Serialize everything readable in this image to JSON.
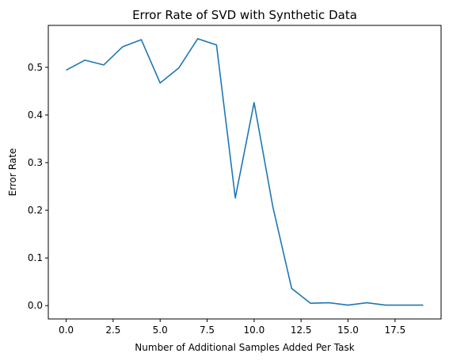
{
  "chart_data": {
    "type": "line",
    "title": "Error Rate of SVD with Synthetic Data",
    "xlabel": "Number of Additional Samples Added Per Task",
    "ylabel": "Error Rate",
    "xlim": [
      -0.95,
      19.95
    ],
    "ylim": [
      -0.028,
      0.588
    ],
    "x_ticks": [
      0.0,
      2.5,
      5.0,
      7.5,
      10.0,
      12.5,
      15.0,
      17.5
    ],
    "x_tick_labels": [
      "0.0",
      "2.5",
      "5.0",
      "7.5",
      "10.0",
      "12.5",
      "15.0",
      "17.5"
    ],
    "y_ticks": [
      0.0,
      0.1,
      0.2,
      0.3,
      0.4,
      0.5
    ],
    "y_tick_labels": [
      "0.0",
      "0.1",
      "0.2",
      "0.3",
      "0.4",
      "0.5"
    ],
    "grid": false,
    "series": [
      {
        "name": "Error Rate",
        "color": "#1f77b4",
        "x": [
          0,
          1,
          2,
          3,
          4,
          5,
          6,
          7,
          8,
          9,
          10,
          11,
          12,
          13,
          14,
          15,
          16,
          17,
          18,
          19
        ],
        "values": [
          0.494,
          0.515,
          0.505,
          0.543,
          0.558,
          0.467,
          0.499,
          0.56,
          0.547,
          0.226,
          0.426,
          0.207,
          0.036,
          0.005,
          0.006,
          0.001,
          0.006,
          0.001,
          0.001,
          0.001
        ]
      }
    ]
  }
}
